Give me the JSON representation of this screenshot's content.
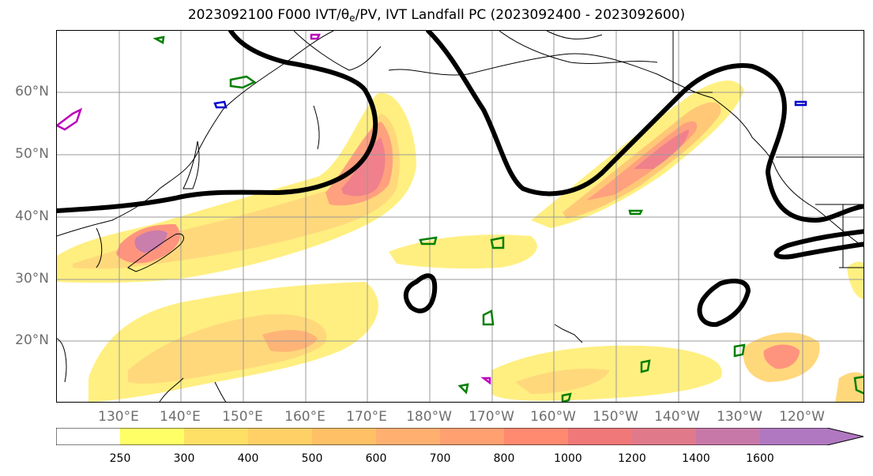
{
  "title": {
    "main_prefix": "2023092100 F000 IVT/",
    "theta": "θ",
    "theta_sub": "e",
    "main_suffix": "/PV, IVT Landfall PC (2023092400 - 2023092600)"
  },
  "map": {
    "projection": "cylindrical",
    "lon_range": [
      120,
      -114
    ],
    "lat_range": [
      10,
      70
    ],
    "lat_labels": [
      "60°N",
      "50°N",
      "40°N",
      "30°N",
      "20°N"
    ],
    "lon_labels": [
      "130°E",
      "140°E",
      "150°E",
      "160°E",
      "170°E",
      "180°W",
      "170°W",
      "160°W",
      "150°W",
      "140°W",
      "130°W",
      "120°W"
    ],
    "grid": true,
    "layers": {
      "ivt_fill": "filled contours of integrated vapor transport",
      "theta_e_contour": "thick black contour",
      "pv_contours": [
        "green",
        "blue",
        "magenta"
      ]
    }
  },
  "colorbar": {
    "ticks": [
      "250",
      "300",
      "400",
      "500",
      "600",
      "700",
      "800",
      "1000",
      "1200",
      "1400",
      "1600"
    ],
    "colors": [
      "#ffffff",
      "#ffff66",
      "#ffe066",
      "#ffd066",
      "#ffc066",
      "#ffb070",
      "#ffa070",
      "#ff8a70",
      "#f07878",
      "#e07a8a",
      "#c878a8",
      "#b078c0"
    ],
    "extend": "max"
  }
}
